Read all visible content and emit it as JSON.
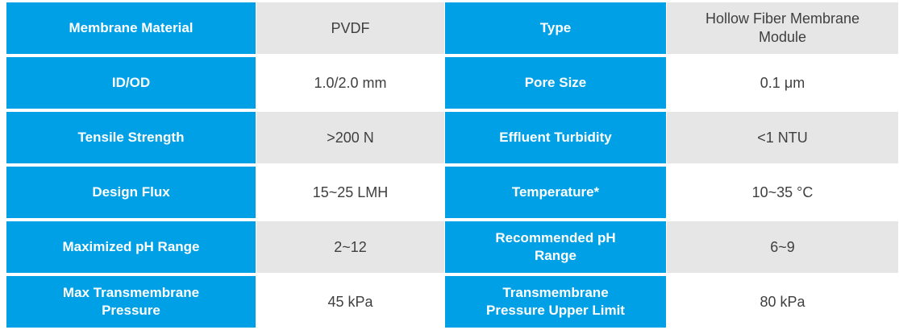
{
  "colors": {
    "page_bg": "#ffffff",
    "header_bg": "#00a0e6",
    "label_text": "#ffffff",
    "value_bg_shaded": "#e6e6e6",
    "value_bg_plain": "#ffffff",
    "value_text": "#3f3f3f"
  },
  "table": {
    "description": "Membrane module specification table",
    "rows": [
      [
        "Membrane Material",
        "PVDF",
        "Type",
        "Hollow Fiber Membrane\nModule"
      ],
      [
        "ID/OD",
        "1.0/2.0 mm",
        "Pore Size",
        "0.1 μm"
      ],
      [
        "Tensile Strength",
        ">200 N",
        "Effluent Turbidity",
        "<1 NTU"
      ],
      [
        "Design Flux",
        "15~25 LMH",
        "Temperature*",
        "10~35 °C"
      ],
      [
        "Maximized pH Range",
        "2~12",
        "Recommended pH\nRange",
        "6~9"
      ],
      [
        "Max Transmembrane\nPressure",
        "45 kPa",
        "Transmembrane\nPressure Upper Limit",
        "80 kPa"
      ]
    ]
  }
}
